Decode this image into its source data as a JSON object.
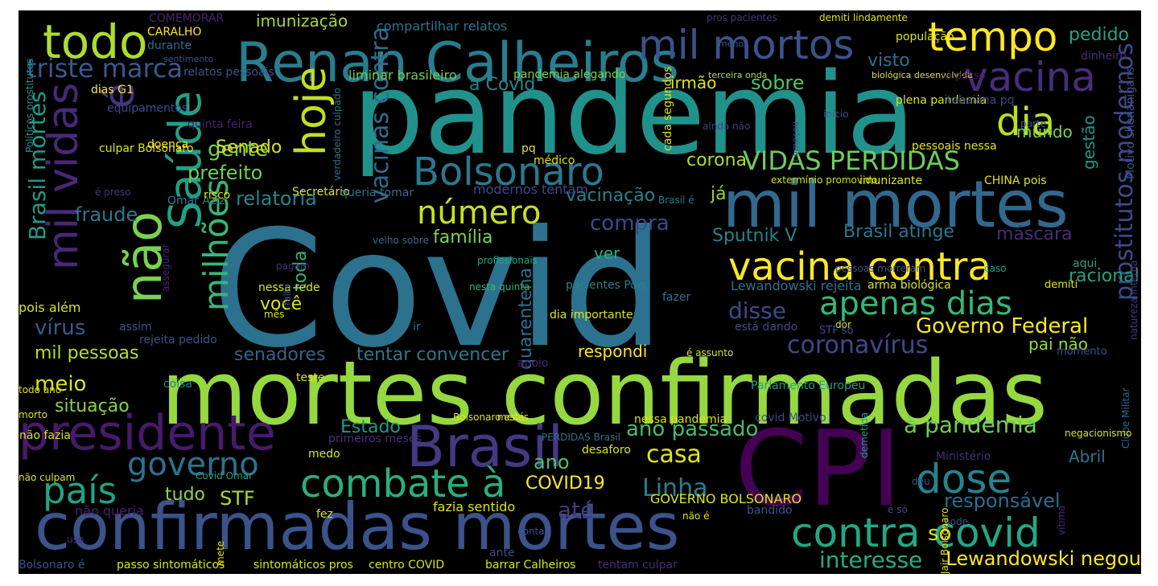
{
  "wordcloud": {
    "background": "#000000",
    "words": [
      {
        "text": "Covid",
        "color": "#2c728e"
      },
      {
        "text": "pandemia",
        "color": "#21918c"
      },
      {
        "text": "mortes confirmadas",
        "color": "#95d840"
      },
      {
        "text": "confirmadas mortes",
        "color": "#3b528b"
      },
      {
        "text": "CPI",
        "color": "#440154"
      },
      {
        "text": "Renan Calheiros",
        "color": "#287d8e"
      },
      {
        "text": "mil mortes",
        "color": "#31688e"
      },
      {
        "text": "Brasil",
        "color": "#443983"
      },
      {
        "text": "presidente",
        "color": "#481a6c"
      },
      {
        "text": "vacina contra",
        "color": "#fde725"
      },
      {
        "text": "contra covid",
        "color": "#22a884"
      },
      {
        "text": "combate à",
        "color": "#29af7f"
      },
      {
        "text": "mil mortos",
        "color": "#3b528b"
      },
      {
        "text": "todo",
        "color": "#addc30"
      },
      {
        "text": "tempo",
        "color": "#fde725"
      },
      {
        "text": "hoje",
        "color": "#c2df23"
      },
      {
        "text": "não",
        "color": "#7ad151"
      },
      {
        "text": "Saúde",
        "color": "#1fa187"
      },
      {
        "text": "Bolsonaro",
        "color": "#2a788e"
      },
      {
        "text": "vacina",
        "color": "#472d7b"
      },
      {
        "text": "dia",
        "color": "#bddf26"
      },
      {
        "text": "é",
        "color": "#46337e"
      },
      {
        "text": "mil vidas",
        "color": "#482878"
      },
      {
        "text": "milhões",
        "color": "#35b779"
      },
      {
        "text": "dose",
        "color": "#25848e"
      },
      {
        "text": "governo",
        "color": "#2c728e"
      },
      {
        "text": "país",
        "color": "#20a386"
      },
      {
        "text": "apenas dias",
        "color": "#35b779"
      },
      {
        "text": "número",
        "color": "#c8e020"
      },
      {
        "text": "VIDAS PERDIDAS",
        "color": "#6ece58"
      },
      {
        "text": "prostitutos modernos",
        "color": "#3e4a89"
      },
      {
        "text": "vacinas contra",
        "color": "#2f6c8e"
      },
      {
        "text": "triste marca",
        "color": "#38598c"
      },
      {
        "text": "Brasil mortes",
        "color": "#1e9c89"
      },
      {
        "text": "coronavírus",
        "color": "#3e4a89"
      },
      {
        "text": "Governo Federal",
        "color": "#fde725"
      },
      {
        "text": "à pandemia",
        "color": "#6ece58"
      },
      {
        "text": "ano passado",
        "color": "#42be71"
      },
      {
        "text": "casa",
        "color": "#e2e418"
      },
      {
        "text": "Linha",
        "color": "#277f8e"
      },
      {
        "text": "responsável",
        "color": "#2f6c8e"
      },
      {
        "text": "interesse",
        "color": "#25ac82"
      },
      {
        "text": "Lewandowski negou",
        "color": "#fde725"
      },
      {
        "text": "só",
        "color": "#dde318"
      },
      {
        "text": "Abril",
        "color": "#2a788e"
      },
      {
        "text": "COVID19",
        "color": "#fde725"
      },
      {
        "text": "STF",
        "color": "#addc30"
      },
      {
        "text": "tudo",
        "color": "#8bd646"
      },
      {
        "text": "até",
        "color": "#453781"
      },
      {
        "text": "Estado",
        "color": "#1f998a"
      },
      {
        "text": "ano",
        "color": "#4ac16d"
      },
      {
        "text": "quarentena",
        "color": "#2e6e8e"
      },
      {
        "text": "meio",
        "color": "#dde318"
      },
      {
        "text": "situação",
        "color": "#84d44b"
      },
      {
        "text": "mil pessoas",
        "color": "#b5de2b"
      },
      {
        "text": "vírus",
        "color": "#365c8d"
      },
      {
        "text": "senadores",
        "color": "#33628d"
      },
      {
        "text": "tentar convencer",
        "color": "#2a788e"
      },
      {
        "text": "respondi",
        "color": "#fde725"
      },
      {
        "text": "disse",
        "color": "#3e4a89"
      },
      {
        "text": "você",
        "color": "#dde318"
      },
      {
        "text": "toda",
        "color": "#2fb47c"
      },
      {
        "text": "ver",
        "color": "#27ad81"
      },
      {
        "text": "família",
        "color": "#7ad151"
      },
      {
        "text": "compra",
        "color": "#3f4889"
      },
      {
        "text": "vacinação",
        "color": "#25848e"
      },
      {
        "text": "Brasil atinge",
        "color": "#2a788e"
      },
      {
        "text": "máscara",
        "color": "#472d7b"
      },
      {
        "text": "Sputnik V",
        "color": "#26828e"
      },
      {
        "text": "já",
        "color": "#8fd744"
      },
      {
        "text": "corona",
        "color": "#addc30"
      },
      {
        "text": "gestão",
        "color": "#1f988b"
      },
      {
        "text": "racional",
        "color": "#20a486"
      },
      {
        "text": "pai não",
        "color": "#95d840"
      },
      {
        "text": "relatoria",
        "color": "#25848e"
      },
      {
        "text": "fraude",
        "color": "#2a788e"
      },
      {
        "text": "prefeito",
        "color": "#6ece58"
      },
      {
        "text": "gente",
        "color": "#7ad151"
      },
      {
        "text": "Senado",
        "color": "#d8e219"
      },
      {
        "text": "sobre",
        "color": "#52c569"
      },
      {
        "text": "irmão",
        "color": "#dde318"
      },
      {
        "text": "visto",
        "color": "#2e6f8e"
      },
      {
        "text": "mundo",
        "color": "#7ad151"
      },
      {
        "text": "pedido",
        "color": "#20a486"
      },
      {
        "text": "imunização",
        "color": "#a2da37"
      },
      {
        "text": "à Covid",
        "color": "#24878e"
      },
      {
        "text": "compartilhar relatos",
        "color": "#2c728e"
      },
      {
        "text": "COMEMORAR",
        "color": "#482475"
      },
      {
        "text": "CARALHO",
        "color": "#fde725"
      },
      {
        "text": "durante",
        "color": "#2e6e8e"
      },
      {
        "text": "sentimento",
        "color": "#3b528b"
      },
      {
        "text": "dias G1",
        "color": "#fde725"
      },
      {
        "text": "equipamentos",
        "color": "#3e4a89"
      },
      {
        "text": "relatos pessoais",
        "color": "#3b528b"
      },
      {
        "text": "liminar brasileiro",
        "color": "#6ece58"
      },
      {
        "text": "pandemia alegando",
        "color": "#7ad151"
      },
      {
        "text": "cada segundos",
        "color": "#dde318"
      },
      {
        "text": "terceira onda",
        "color": "#b5de2b"
      },
      {
        "text": "biológica desenvolvida",
        "color": "#dde318"
      },
      {
        "text": "pros pacientes",
        "color": "#46337e"
      },
      {
        "text": "demiti lindamente",
        "color": "#dde318"
      },
      {
        "text": "população",
        "color": "#dde318"
      },
      {
        "text": "só passo",
        "color": "#48186a"
      },
      {
        "text": "dinheiro",
        "color": "#472d7b"
      },
      {
        "text": "menos",
        "color": "#3b528b"
      },
      {
        "text": "plena pandemia",
        "color": "#dde318"
      },
      {
        "text": "itabaiana pq",
        "color": "#3e4a89"
      },
      {
        "text": "parte",
        "color": "#38598c"
      },
      {
        "text": "início",
        "color": "#3b528b"
      },
      {
        "text": "começou",
        "color": "#3e4a89"
      },
      {
        "text": "ainda não",
        "color": "#433e85"
      },
      {
        "text": "pessoais nessa",
        "color": "#e2e418"
      },
      {
        "text": "Motivo shenanigans",
        "color": "#3b528b"
      },
      {
        "text": "Clube Militar",
        "color": "#306a8e"
      },
      {
        "text": "natureza interna",
        "color": "#463480"
      },
      {
        "text": "Políticos prostitutos",
        "color": "#21918c"
      },
      {
        "text": "culpar Bolsonaro",
        "color": "#dde318"
      },
      {
        "text": "quinta feira",
        "color": "#481f71"
      },
      {
        "text": "doença",
        "color": "#fde725"
      },
      {
        "text": "é preso",
        "color": "#46337e"
      },
      {
        "text": "Omar Aziz",
        "color": "#2a788e"
      },
      {
        "text": "risco",
        "color": "#dde318"
      },
      {
        "text": "verdadeiro culpado",
        "color": "#2d718e"
      },
      {
        "text": "Secretário",
        "color": "#dde318"
      },
      {
        "text": "queria tomar",
        "color": "#2c728e"
      },
      {
        "text": "modernos tentam",
        "color": "#3e4a89"
      },
      {
        "text": "pq",
        "color": "#dde318"
      },
      {
        "text": "médico",
        "color": "#dde318"
      },
      {
        "text": "Brasil é",
        "color": "#2a788e"
      },
      {
        "text": "extermínio promovido",
        "color": "#c8e020"
      },
      {
        "text": "imunizante",
        "color": "#dde318"
      },
      {
        "text": "CHINA pois",
        "color": "#dde318"
      },
      {
        "text": "velho sobre",
        "color": "#2e6e8e"
      },
      {
        "text": "pacientes Pois",
        "color": "#26828e"
      },
      {
        "text": "pessoas morreram",
        "color": "#3b528b"
      },
      {
        "text": "caso",
        "color": "#1fa187"
      },
      {
        "text": "aqui",
        "color": "#20a386"
      },
      {
        "text": "pagam",
        "color": "#472d7b"
      },
      {
        "text": "profissionais",
        "color": "#22a785"
      },
      {
        "text": "assegurar",
        "color": "#482878"
      },
      {
        "text": "Lewandowski rejeita",
        "color": "#2c728e"
      },
      {
        "text": "arma biológica",
        "color": "#dde318"
      },
      {
        "text": "demiti",
        "color": "#dde318"
      },
      {
        "text": "nessa rede",
        "color": "#dde318"
      },
      {
        "text": "falta",
        "color": "#3b528b"
      },
      {
        "text": "nesta quinta",
        "color": "#35b779"
      },
      {
        "text": "pois além",
        "color": "#dde318"
      },
      {
        "text": "mês",
        "color": "#dde318"
      },
      {
        "text": "fazer",
        "color": "#2c728e"
      },
      {
        "text": "assim",
        "color": "#3b528b"
      },
      {
        "text": "ir",
        "color": "#2a788e"
      },
      {
        "text": "dia importante",
        "color": "#dde318"
      },
      {
        "text": "está dando",
        "color": "#3e4a89"
      },
      {
        "text": "dor",
        "color": "#dde318"
      },
      {
        "text": "STF só",
        "color": "#3e4a89"
      },
      {
        "text": "rejeita pedido",
        "color": "#3b528b"
      },
      {
        "text": "momento",
        "color": "#3b528b"
      },
      {
        "text": "todo ano",
        "color": "#dde318"
      },
      {
        "text": "é assunto",
        "color": "#dde318"
      },
      {
        "text": "coisa",
        "color": "#26828e"
      },
      {
        "text": "apoio",
        "color": "#482475"
      },
      {
        "text": "teste",
        "color": "#dde318"
      },
      {
        "text": "Parlamento Europeu",
        "color": "#1fa187"
      },
      {
        "text": "morto",
        "color": "#dde318"
      },
      {
        "text": "Bolsonaro está",
        "color": "#dde318"
      },
      {
        "text": "meses",
        "color": "#dde318"
      },
      {
        "text": "nessa pandemia",
        "color": "#dde318"
      },
      {
        "text": "covid Motivo",
        "color": "#3e4a89"
      },
      {
        "text": "demetida",
        "color": "#1f9e89"
      },
      {
        "text": "primeiros meses",
        "color": "#472d7b"
      },
      {
        "text": "PERDIDAS Brasil",
        "color": "#2e6e8e"
      },
      {
        "text": "negacionismo",
        "color": "#dde318"
      },
      {
        "text": "não fazia",
        "color": "#dde318"
      },
      {
        "text": "medo",
        "color": "#dde318"
      },
      {
        "text": "desaforo",
        "color": "#dde318"
      },
      {
        "text": "Ministério",
        "color": "#472d7b"
      },
      {
        "text": "Covid Omar",
        "color": "#20a386"
      },
      {
        "text": "não culpam",
        "color": "#dde318"
      },
      {
        "text": "deu",
        "color": "#3b528b"
      },
      {
        "text": "vítima",
        "color": "#482878"
      },
      {
        "text": "não queria",
        "color": "#481f71"
      },
      {
        "text": "fazia sentido",
        "color": "#dde318"
      },
      {
        "text": "GOVERNO BOLSONARO",
        "color": "#dde318"
      },
      {
        "text": "bandido",
        "color": "#3b528b"
      },
      {
        "text": "fez",
        "color": "#dde318"
      },
      {
        "text": "é só",
        "color": "#3e4a89"
      },
      {
        "text": "não é",
        "color": "#dde318"
      },
      {
        "text": "pode",
        "color": "#3b528b"
      },
      {
        "text": "uso",
        "color": "#472d7b"
      },
      {
        "text": "conta",
        "color": "#3b528b"
      },
      {
        "text": "mete",
        "color": "#dde318"
      },
      {
        "text": "ante",
        "color": "#3e4a89"
      },
      {
        "text": "Jair Bolsonaro",
        "color": "#dde318"
      },
      {
        "text": "Bolsonaro é",
        "color": "#3b528b"
      },
      {
        "text": "passo sintomáticos",
        "color": "#dde318"
      },
      {
        "text": "sintomáticos pros",
        "color": "#dde318"
      },
      {
        "text": "centro COVID",
        "color": "#dde318"
      },
      {
        "text": "barrar Calheiros",
        "color": "#dde318"
      },
      {
        "text": "tentam culpar",
        "color": "#472d7b"
      }
    ]
  }
}
